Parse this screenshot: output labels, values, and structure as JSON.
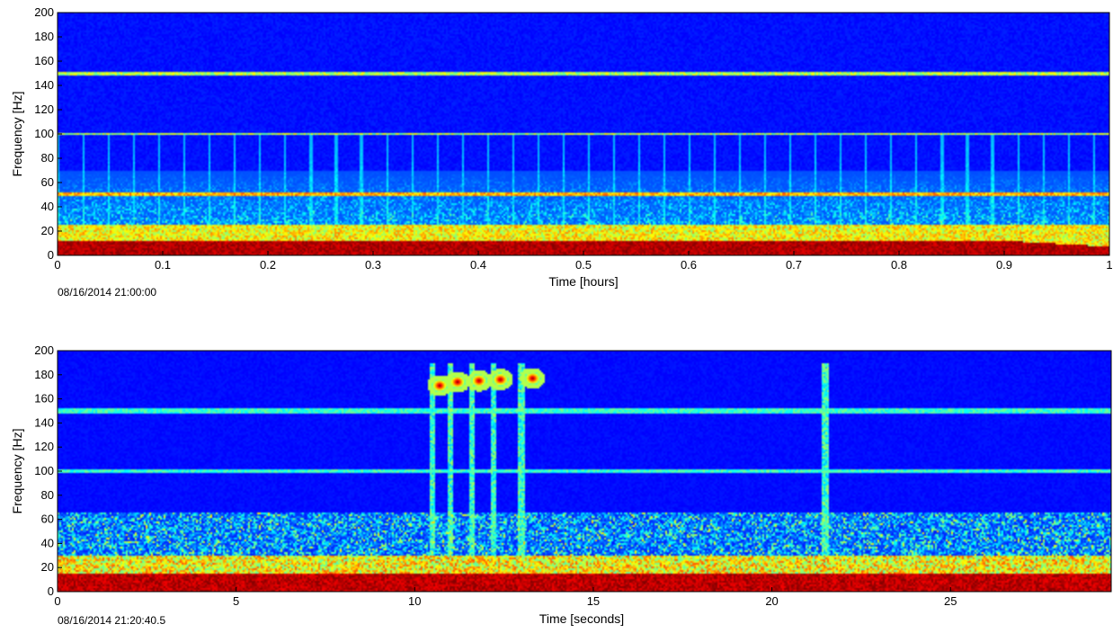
{
  "chart_data": [
    {
      "type": "heatmap",
      "subtype": "spectrogram",
      "xlabel": "Time [hours]",
      "ylabel": "Frequency [Hz]",
      "xlim": [
        0,
        1
      ],
      "ylim": [
        0,
        200
      ],
      "x_ticks": [
        0,
        0.1,
        0.2,
        0.3,
        0.4,
        0.5,
        0.6,
        0.7,
        0.8,
        0.9,
        1
      ],
      "x_tick_labels": [
        "0",
        "0.1",
        "0.2",
        "0.3",
        "0.4",
        "0.5",
        "0.6",
        "0.7",
        "0.8",
        "0.9",
        "1"
      ],
      "y_ticks": [
        0,
        20,
        40,
        60,
        80,
        100,
        120,
        140,
        160,
        180,
        200
      ],
      "y_tick_labels": [
        "0",
        "20",
        "40",
        "60",
        "80",
        "100",
        "120",
        "140",
        "160",
        "180",
        "200"
      ],
      "start_time_label": "08/16/2014 21:00:00",
      "colormap": "jet",
      "features": {
        "low_frequency_band_hz": [
          0,
          12
        ],
        "broadband_noise_hz": [
          12,
          70
        ],
        "tonal_lines_hz": [
          50,
          100,
          150
        ],
        "periodic_vertical_streaks_hours_interval": 0.024
      }
    },
    {
      "type": "heatmap",
      "subtype": "spectrogram",
      "xlabel": "Time [seconds]",
      "ylabel": "Frequency [Hz]",
      "xlim": [
        0,
        29.5
      ],
      "ylim": [
        0,
        200
      ],
      "x_ticks": [
        0,
        5,
        10,
        15,
        20,
        25
      ],
      "x_tick_labels": [
        "0",
        "5",
        "10",
        "15",
        "20",
        "25"
      ],
      "y_ticks": [
        0,
        20,
        40,
        60,
        80,
        100,
        120,
        140,
        160,
        180,
        200
      ],
      "y_tick_labels": [
        "0",
        "20",
        "40",
        "60",
        "80",
        "100",
        "120",
        "140",
        "160",
        "180",
        "200"
      ],
      "start_time_label": "08/16/2014 21:20:40.5",
      "colormap": "jet",
      "features": {
        "low_frequency_band_hz": [
          0,
          15
        ],
        "broadband_noise_hz": [
          15,
          65
        ],
        "tonal_lines_hz": [
          100,
          150
        ],
        "call_pulses": [
          {
            "t": 10.7,
            "f": 171
          },
          {
            "t": 11.2,
            "f": 174
          },
          {
            "t": 11.8,
            "f": 175
          },
          {
            "t": 12.4,
            "f": 176
          },
          {
            "t": 13.3,
            "f": 177
          }
        ],
        "vertical_streaks_s": [
          10.5,
          11.0,
          11.6,
          12.2,
          13.0,
          21.5
        ]
      }
    }
  ]
}
